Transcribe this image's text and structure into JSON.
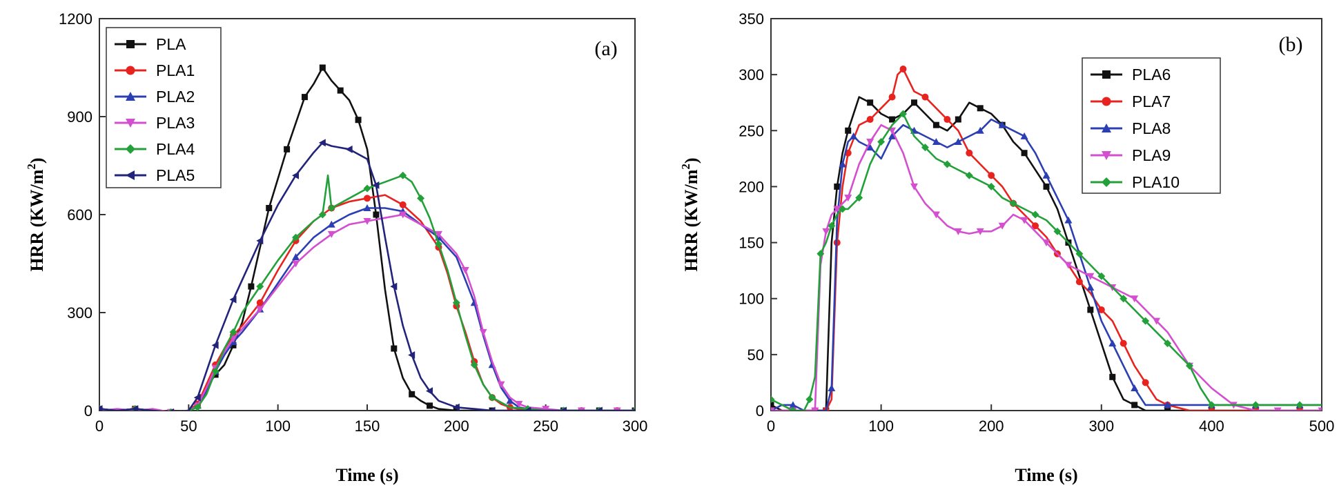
{
  "chart_data": [
    {
      "type": "line",
      "panel_label": "(a)",
      "xlabel": "Time (s)",
      "ylabel_main": "HRR (KW/m",
      "ylabel_sup": "2",
      "ylabel_close": ")",
      "xlim": [
        0,
        300
      ],
      "ylim": [
        0,
        1200
      ],
      "xticks": [
        0,
        50,
        100,
        150,
        200,
        250,
        300
      ],
      "yticks": [
        0,
        300,
        600,
        900,
        1200
      ],
      "legend_position": "top-left",
      "grid": false,
      "series": [
        {
          "name": "PLA",
          "color": "#111111",
          "marker": "square",
          "x": [
            0,
            10,
            20,
            30,
            40,
            50,
            55,
            60,
            65,
            70,
            75,
            80,
            85,
            90,
            95,
            100,
            105,
            110,
            115,
            120,
            125,
            130,
            135,
            140,
            145,
            150,
            155,
            160,
            165,
            170,
            175,
            180,
            185,
            190,
            200,
            210,
            220,
            230,
            240,
            250,
            260,
            270,
            280,
            290,
            300
          ],
          "y": [
            5,
            0,
            5,
            -5,
            -5,
            0,
            20,
            70,
            110,
            140,
            200,
            270,
            380,
            500,
            620,
            710,
            800,
            880,
            960,
            1000,
            1050,
            1010,
            980,
            950,
            890,
            800,
            600,
            370,
            190,
            100,
            50,
            30,
            15,
            5,
            0,
            0,
            0,
            0,
            0,
            0,
            0,
            0,
            0,
            0,
            0
          ]
        },
        {
          "name": "PLA1",
          "color": "#e8231f",
          "marker": "circle",
          "x": [
            0,
            10,
            20,
            30,
            40,
            50,
            55,
            60,
            65,
            70,
            75,
            80,
            90,
            100,
            110,
            120,
            130,
            140,
            150,
            160,
            170,
            180,
            190,
            195,
            200,
            205,
            210,
            215,
            220,
            225,
            230,
            240,
            250,
            260,
            270,
            280,
            290,
            300
          ],
          "y": [
            5,
            0,
            5,
            0,
            -5,
            0,
            20,
            80,
            140,
            190,
            230,
            260,
            330,
            430,
            520,
            580,
            620,
            640,
            650,
            660,
            630,
            580,
            500,
            420,
            320,
            240,
            150,
            80,
            40,
            20,
            10,
            0,
            0,
            0,
            0,
            0,
            0,
            0
          ]
        },
        {
          "name": "PLA2",
          "color": "#2b3fb3",
          "marker": "triangle-up",
          "x": [
            0,
            10,
            20,
            30,
            40,
            50,
            55,
            60,
            65,
            70,
            75,
            80,
            90,
            100,
            110,
            120,
            130,
            140,
            150,
            160,
            170,
            180,
            190,
            200,
            210,
            215,
            220,
            225,
            230,
            235,
            240,
            250,
            260,
            270,
            280,
            290,
            300
          ],
          "y": [
            5,
            0,
            5,
            0,
            -5,
            0,
            15,
            60,
            120,
            170,
            210,
            240,
            310,
            390,
            470,
            530,
            570,
            600,
            620,
            620,
            610,
            570,
            530,
            470,
            330,
            230,
            140,
            70,
            30,
            10,
            5,
            0,
            0,
            0,
            0,
            0,
            0
          ]
        },
        {
          "name": "PLA3",
          "color": "#d34fd0",
          "marker": "triangle-down",
          "x": [
            0,
            10,
            20,
            30,
            40,
            50,
            55,
            60,
            65,
            70,
            75,
            80,
            90,
            100,
            110,
            120,
            130,
            140,
            150,
            160,
            170,
            180,
            190,
            200,
            205,
            210,
            215,
            220,
            225,
            230,
            235,
            240,
            250,
            260,
            270,
            280,
            290,
            300
          ],
          "y": [
            0,
            5,
            0,
            5,
            -5,
            0,
            15,
            70,
            130,
            180,
            220,
            250,
            310,
            380,
            450,
            500,
            540,
            570,
            580,
            590,
            600,
            570,
            540,
            480,
            430,
            350,
            240,
            150,
            80,
            40,
            20,
            10,
            5,
            0,
            0,
            0,
            0,
            0
          ]
        },
        {
          "name": "PLA4",
          "color": "#23a03a",
          "marker": "diamond",
          "x": [
            0,
            10,
            20,
            30,
            40,
            50,
            55,
            60,
            65,
            70,
            75,
            80,
            90,
            100,
            110,
            120,
            125,
            128,
            130,
            140,
            150,
            160,
            170,
            175,
            180,
            185,
            190,
            195,
            200,
            205,
            210,
            215,
            220,
            230,
            240,
            250,
            260,
            270,
            280,
            290,
            300
          ],
          "y": [
            5,
            0,
            5,
            0,
            -5,
            0,
            10,
            50,
            120,
            190,
            240,
            300,
            380,
            460,
            530,
            580,
            600,
            720,
            620,
            650,
            680,
            700,
            720,
            700,
            650,
            590,
            510,
            430,
            330,
            230,
            140,
            80,
            40,
            10,
            5,
            0,
            0,
            0,
            0,
            0,
            0
          ]
        },
        {
          "name": "PLA5",
          "color": "#22237a",
          "marker": "triangle-left",
          "x": [
            0,
            10,
            20,
            30,
            40,
            50,
            55,
            60,
            65,
            70,
            75,
            80,
            90,
            100,
            110,
            120,
            125,
            130,
            140,
            150,
            155,
            160,
            165,
            170,
            175,
            180,
            185,
            190,
            200,
            210,
            220,
            230,
            240,
            250,
            260,
            270,
            280,
            290,
            300
          ],
          "y": [
            5,
            0,
            5,
            0,
            -5,
            0,
            40,
            120,
            200,
            270,
            340,
            400,
            520,
            630,
            720,
            790,
            820,
            810,
            800,
            770,
            690,
            530,
            380,
            260,
            170,
            100,
            60,
            30,
            10,
            5,
            0,
            0,
            0,
            0,
            0,
            0,
            0,
            0,
            0
          ]
        }
      ]
    },
    {
      "type": "line",
      "panel_label": "(b)",
      "xlabel": "Time (s)",
      "ylabel_main": "HRR (KW/m",
      "ylabel_sup": "2",
      "ylabel_close": ")",
      "xlim": [
        0,
        500
      ],
      "ylim": [
        0,
        350
      ],
      "xticks": [
        0,
        100,
        200,
        300,
        400,
        500
      ],
      "yticks": [
        0,
        50,
        100,
        150,
        200,
        250,
        300,
        350
      ],
      "legend_position": "top-right",
      "grid": false,
      "series": [
        {
          "name": "PLA6",
          "color": "#111111",
          "marker": "square",
          "x": [
            0,
            10,
            20,
            30,
            40,
            45,
            50,
            55,
            60,
            65,
            70,
            80,
            90,
            100,
            110,
            120,
            130,
            140,
            150,
            160,
            170,
            180,
            190,
            200,
            210,
            220,
            230,
            240,
            250,
            260,
            270,
            280,
            290,
            300,
            310,
            320,
            330,
            340,
            360,
            380,
            400,
            420,
            440,
            460,
            480,
            500
          ],
          "y": [
            5,
            0,
            0,
            0,
            0,
            0,
            0,
            150,
            200,
            230,
            250,
            280,
            275,
            265,
            260,
            265,
            275,
            265,
            255,
            250,
            260,
            275,
            270,
            265,
            255,
            240,
            230,
            215,
            200,
            180,
            150,
            120,
            90,
            60,
            30,
            10,
            5,
            0,
            0,
            0,
            0,
            0,
            0,
            0,
            0,
            0
          ]
        },
        {
          "name": "PLA7",
          "color": "#e8231f",
          "marker": "circle",
          "x": [
            0,
            10,
            20,
            30,
            40,
            45,
            50,
            55,
            60,
            65,
            70,
            80,
            90,
            100,
            110,
            115,
            120,
            130,
            140,
            150,
            160,
            170,
            180,
            190,
            200,
            210,
            220,
            230,
            240,
            250,
            260,
            270,
            280,
            290,
            300,
            310,
            320,
            330,
            340,
            350,
            360,
            380,
            400,
            420,
            440,
            460,
            480,
            500
          ],
          "y": [
            0,
            0,
            0,
            0,
            0,
            0,
            0,
            10,
            150,
            200,
            230,
            255,
            260,
            270,
            280,
            300,
            305,
            285,
            280,
            270,
            260,
            250,
            230,
            220,
            210,
            200,
            185,
            175,
            165,
            155,
            140,
            130,
            115,
            105,
            90,
            80,
            60,
            40,
            25,
            10,
            5,
            0,
            0,
            0,
            0,
            0,
            0,
            0
          ]
        },
        {
          "name": "PLA8",
          "color": "#2b3fb3",
          "marker": "triangle-up",
          "x": [
            0,
            10,
            20,
            30,
            40,
            50,
            55,
            60,
            65,
            70,
            75,
            80,
            90,
            100,
            110,
            120,
            130,
            140,
            150,
            160,
            170,
            180,
            190,
            200,
            210,
            220,
            230,
            240,
            250,
            260,
            270,
            280,
            290,
            300,
            310,
            320,
            330,
            340,
            360,
            380,
            400,
            420,
            440,
            460,
            480,
            500
          ],
          "y": [
            0,
            5,
            5,
            0,
            0,
            0,
            20,
            170,
            220,
            240,
            245,
            240,
            235,
            225,
            245,
            255,
            250,
            245,
            240,
            235,
            240,
            245,
            250,
            260,
            255,
            250,
            245,
            230,
            210,
            190,
            170,
            140,
            110,
            80,
            60,
            40,
            20,
            5,
            5,
            5,
            5,
            5,
            5,
            5,
            5,
            5
          ]
        },
        {
          "name": "PLA9",
          "color": "#d34fd0",
          "marker": "triangle-down",
          "x": [
            0,
            10,
            20,
            30,
            40,
            45,
            50,
            55,
            60,
            65,
            70,
            80,
            90,
            100,
            110,
            120,
            130,
            140,
            150,
            160,
            170,
            180,
            190,
            200,
            210,
            220,
            230,
            240,
            250,
            260,
            270,
            280,
            290,
            300,
            310,
            320,
            330,
            340,
            350,
            360,
            380,
            400,
            420,
            440,
            460,
            480,
            500
          ],
          "y": [
            0,
            0,
            0,
            0,
            0,
            130,
            160,
            175,
            180,
            185,
            190,
            220,
            240,
            255,
            250,
            230,
            200,
            185,
            175,
            165,
            160,
            158,
            160,
            160,
            165,
            175,
            170,
            160,
            150,
            140,
            130,
            125,
            120,
            115,
            110,
            105,
            100,
            90,
            80,
            70,
            40,
            20,
            5,
            0,
            0,
            0,
            0
          ]
        },
        {
          "name": "PLA10",
          "color": "#23a03a",
          "marker": "diamond",
          "x": [
            0,
            10,
            20,
            30,
            35,
            40,
            45,
            50,
            55,
            60,
            65,
            70,
            80,
            90,
            100,
            110,
            120,
            130,
            140,
            150,
            160,
            170,
            180,
            190,
            200,
            210,
            220,
            230,
            240,
            250,
            260,
            270,
            280,
            290,
            300,
            310,
            320,
            330,
            340,
            350,
            360,
            370,
            380,
            390,
            400,
            420,
            440,
            460,
            480,
            500
          ],
          "y": [
            10,
            5,
            0,
            0,
            10,
            30,
            140,
            150,
            165,
            175,
            180,
            180,
            190,
            220,
            240,
            255,
            265,
            245,
            235,
            225,
            220,
            215,
            210,
            205,
            200,
            190,
            185,
            180,
            175,
            170,
            160,
            150,
            140,
            130,
            120,
            110,
            100,
            90,
            80,
            70,
            60,
            50,
            40,
            20,
            5,
            5,
            5,
            5,
            5,
            5
          ]
        }
      ]
    }
  ]
}
